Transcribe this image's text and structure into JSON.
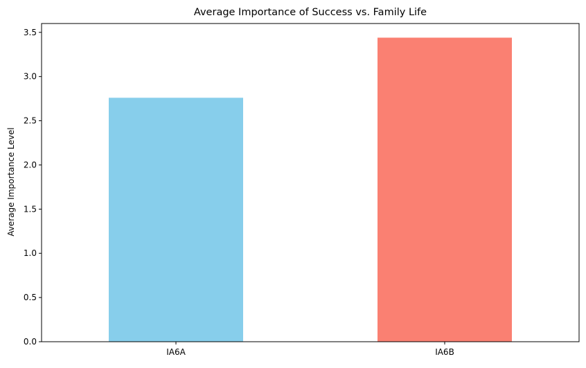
{
  "chart_data": {
    "type": "bar",
    "title": "Average Importance of Success vs. Family Life",
    "xlabel": "",
    "ylabel": "Average Importance Level",
    "categories": [
      "IA6A",
      "IA6B"
    ],
    "values": [
      2.76,
      3.44
    ],
    "colors": [
      "#87CEEB",
      "#FA8072"
    ],
    "ylim": [
      0,
      3.6
    ],
    "yticks": [
      0.0,
      0.5,
      1.0,
      1.5,
      2.0,
      2.5,
      3.0,
      3.5
    ],
    "ytick_labels": [
      "0.0",
      "0.5",
      "1.0",
      "1.5",
      "2.0",
      "2.5",
      "3.0",
      "3.5"
    ],
    "grid": false,
    "legend": "none"
  }
}
